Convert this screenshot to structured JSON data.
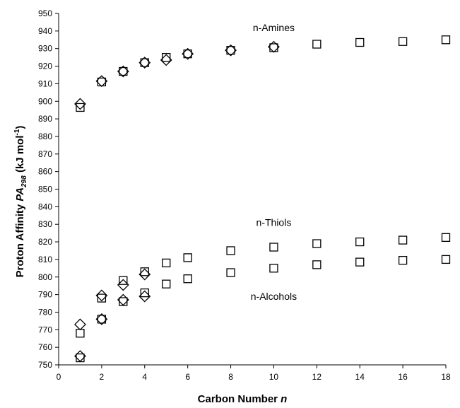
{
  "chart_data": {
    "type": "scatter",
    "title": "",
    "xlabel": {
      "text": "Carbon Number",
      "var": "n"
    },
    "ylabel": {
      "text": "Proton Affinity",
      "var": "PA",
      "var_sub": "298",
      "unit_open": "(kJ mol",
      "unit_sup": "-1",
      "unit_close": ")"
    },
    "xlim": [
      0,
      18
    ],
    "ylim": [
      750,
      950
    ],
    "xticks": [
      0,
      2,
      4,
      6,
      8,
      10,
      12,
      14,
      16,
      18
    ],
    "yticks": [
      750,
      760,
      770,
      780,
      790,
      800,
      810,
      820,
      830,
      840,
      850,
      860,
      870,
      880,
      890,
      900,
      910,
      920,
      930,
      940,
      950
    ],
    "grid": false,
    "legend": "none",
    "annotations": [
      {
        "text": "n-Amines",
        "x": 10.0,
        "y": 942
      },
      {
        "text": "n-Thiols",
        "x": 10.0,
        "y": 831
      },
      {
        "text": "n-Alcohols",
        "x": 10.0,
        "y": 789
      }
    ],
    "series": [
      {
        "marker": "square",
        "color": "#000000",
        "points": [
          [
            1,
            896.5
          ],
          [
            2,
            911
          ],
          [
            3,
            917
          ],
          [
            4,
            922
          ],
          [
            5,
            925
          ],
          [
            6,
            927
          ],
          [
            8,
            929
          ],
          [
            10,
            930.5
          ],
          [
            12,
            932.5
          ],
          [
            14,
            933.5
          ],
          [
            16,
            934
          ],
          [
            18,
            935
          ],
          [
            1,
            768
          ],
          [
            2,
            788
          ],
          [
            3,
            798
          ],
          [
            4,
            803
          ],
          [
            5,
            808
          ],
          [
            6,
            811
          ],
          [
            8,
            815
          ],
          [
            10,
            817
          ],
          [
            12,
            819
          ],
          [
            14,
            820
          ],
          [
            16,
            821
          ],
          [
            18,
            822.5
          ],
          [
            1,
            754
          ],
          [
            2,
            776
          ],
          [
            3,
            786
          ],
          [
            4,
            791
          ],
          [
            5,
            796
          ],
          [
            6,
            799
          ],
          [
            8,
            802.5
          ],
          [
            10,
            805
          ],
          [
            12,
            807
          ],
          [
            14,
            808.5
          ],
          [
            16,
            809.5
          ],
          [
            18,
            810
          ]
        ]
      },
      {
        "marker": "diamond",
        "color": "#000000",
        "points": [
          [
            1,
            898.5
          ],
          [
            2,
            911.5
          ],
          [
            3,
            917
          ],
          [
            4,
            922
          ],
          [
            5,
            923.5
          ],
          [
            6,
            927
          ],
          [
            8,
            929
          ],
          [
            10,
            931
          ],
          [
            1,
            773
          ],
          [
            2,
            789.5
          ],
          [
            3,
            795.5
          ],
          [
            4,
            801.5
          ],
          [
            1,
            755
          ],
          [
            2,
            776
          ],
          [
            3,
            787
          ],
          [
            4,
            789
          ]
        ]
      }
    ]
  }
}
